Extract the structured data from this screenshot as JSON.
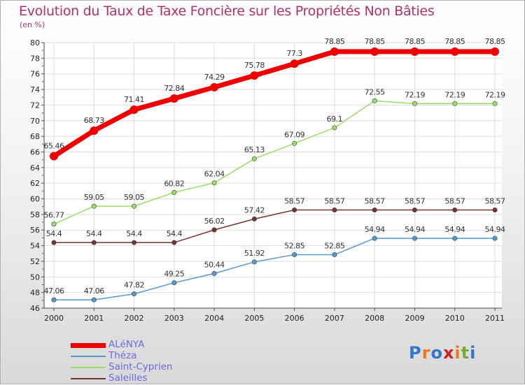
{
  "chart_data": {
    "type": "line",
    "title": "Evolution du Taux de Taxe Foncière sur les Propriétés Non Bâties",
    "subtitle": "(en %)",
    "categories": [
      "2000",
      "2001",
      "2002",
      "2003",
      "2004",
      "2005",
      "2006",
      "2007",
      "2008",
      "2009",
      "2010",
      "2011"
    ],
    "ylim": [
      46,
      80
    ],
    "yticks": [
      46,
      48,
      50,
      52,
      54,
      56,
      58,
      60,
      62,
      64,
      66,
      68,
      70,
      72,
      74,
      76,
      78,
      80
    ],
    "grid": true,
    "legend_position": "bottom-left",
    "series": [
      {
        "name": "ALéNYA",
        "color": "#ee0000",
        "values": [
          65.46,
          68.73,
          71.41,
          72.84,
          74.29,
          75.78,
          77.3,
          78.85,
          78.85,
          78.85,
          78.85,
          78.85
        ],
        "labels": [
          "65.46",
          "68.73",
          "71.41",
          "72.84",
          "74.29",
          "75.78",
          "77.3",
          "78.85",
          "78.85",
          "78.85",
          "78.85",
          "78.85"
        ]
      },
      {
        "name": "Théza",
        "color": "#5599cc",
        "values": [
          47.06,
          47.06,
          47.82,
          49.25,
          50.44,
          51.92,
          52.85,
          52.85,
          54.94,
          54.94,
          54.94,
          54.94
        ],
        "labels": [
          "47.06",
          "47.06",
          "47.82",
          "49.25",
          "50.44",
          "51.92",
          "52.85",
          "52.85",
          "54.94",
          "54.94",
          "54.94",
          "54.94"
        ]
      },
      {
        "name": "Saint-Cyprien",
        "color": "#99dd66",
        "values": [
          56.77,
          59.05,
          59.05,
          60.82,
          62.04,
          65.13,
          67.09,
          69.1,
          72.55,
          72.19,
          72.19,
          72.19
        ],
        "labels": [
          "56.77",
          "59.05",
          "59.05",
          "60.82",
          "62.04",
          "65.13",
          "67.09",
          "69.1",
          "72.55",
          "72.19",
          "72.19",
          "72.19"
        ]
      },
      {
        "name": "Saleilles",
        "color": "#773333",
        "values": [
          54.4,
          54.4,
          54.4,
          54.4,
          56.02,
          57.42,
          58.57,
          58.57,
          58.57,
          58.57,
          58.57,
          58.57
        ],
        "labels": [
          "54.4",
          "54.4",
          "54.4",
          "54.4",
          "56.02",
          "57.42",
          "58.57",
          "58.57",
          "58.57",
          "58.57",
          "58.57",
          "58.57"
        ]
      }
    ]
  },
  "logo": {
    "letters": [
      "P",
      "r",
      "o",
      "x",
      "i",
      "t",
      "i"
    ],
    "colors": [
      "#3377cc",
      "#ee7722",
      "#3377cc",
      "#cc2222",
      "#ee7722",
      "#77aa33",
      "#3377cc"
    ]
  }
}
